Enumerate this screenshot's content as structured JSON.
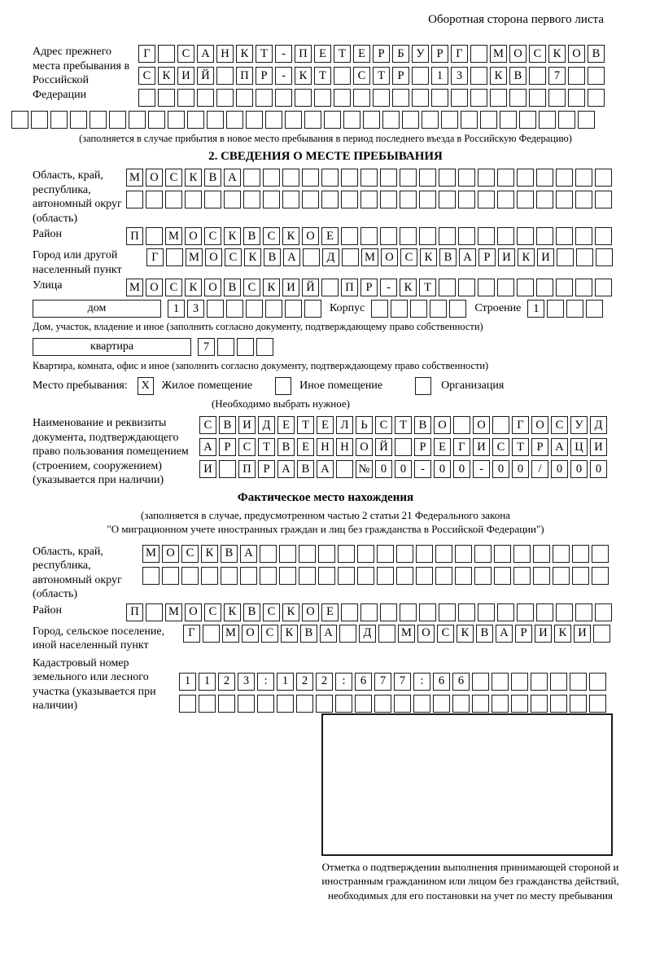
{
  "header": {
    "note": "Оборотная сторона первого листа"
  },
  "prev_address": {
    "label": "Адрес прежнего места пребывания в Российской Федерации",
    "row1": [
      "Г",
      "",
      "С",
      "А",
      "Н",
      "К",
      "Т",
      "-",
      "П",
      "Е",
      "Т",
      "Е",
      "Р",
      "Б",
      "У",
      "Р",
      "Г",
      "",
      "М",
      "О",
      "С",
      "К",
      "О",
      "В"
    ],
    "row2": [
      "С",
      "К",
      "И",
      "Й",
      "",
      "П",
      "Р",
      "-",
      "К",
      "Т",
      "",
      "С",
      "Т",
      "Р",
      "",
      "1",
      "3",
      "",
      "К",
      "В",
      "",
      "7",
      "",
      ""
    ],
    "row3": [
      "",
      "",
      "",
      "",
      "",
      "",
      "",
      "",
      "",
      "",
      "",
      "",
      "",
      "",
      "",
      "",
      "",
      "",
      "",
      "",
      "",
      "",
      "",
      ""
    ],
    "overflow_row": [
      "",
      "",
      "",
      "",
      "",
      "",
      "",
      "",
      "",
      "",
      "",
      "",
      "",
      "",
      "",
      "",
      "",
      "",
      "",
      "",
      "",
      "",
      "",
      "",
      "",
      "",
      "",
      "",
      "",
      ""
    ],
    "note": "(заполняется в случае прибытия в новое место пребывания в период последнего въезда в Российскую Федерацию)"
  },
  "section2": {
    "title": "2. СВЕДЕНИЯ О МЕСТЕ ПРЕБЫВАНИЯ",
    "region": {
      "label": "Область, край, республика, автономный округ (область)",
      "row1": [
        "М",
        "О",
        "С",
        "К",
        "В",
        "А",
        "",
        "",
        "",
        "",
        "",
        "",
        "",
        "",
        "",
        "",
        "",
        "",
        "",
        "",
        "",
        "",
        "",
        "",
        ""
      ],
      "row2": [
        "",
        "",
        "",
        "",
        "",
        "",
        "",
        "",
        "",
        "",
        "",
        "",
        "",
        "",
        "",
        "",
        "",
        "",
        "",
        "",
        "",
        "",
        "",
        "",
        ""
      ]
    },
    "district": {
      "label": "Район",
      "row": [
        "П",
        "",
        "М",
        "О",
        "С",
        "К",
        "В",
        "С",
        "К",
        "О",
        "Е",
        "",
        "",
        "",
        "",
        "",
        "",
        "",
        "",
        "",
        "",
        "",
        "",
        "",
        ""
      ]
    },
    "city": {
      "label": "Город или другой населенный пункт",
      "row": [
        "Г",
        "",
        "М",
        "О",
        "С",
        "К",
        "В",
        "А",
        "",
        "Д",
        "",
        "М",
        "О",
        "С",
        "К",
        "В",
        "А",
        "Р",
        "И",
        "К",
        "И",
        "",
        "",
        ""
      ]
    },
    "street": {
      "label": "Улица",
      "row": [
        "М",
        "О",
        "С",
        "К",
        "О",
        "В",
        "С",
        "К",
        "И",
        "Й",
        "",
        "П",
        "Р",
        "-",
        "К",
        "Т",
        "",
        "",
        "",
        "",
        "",
        "",
        "",
        "",
        ""
      ]
    },
    "house": {
      "box_label": "дом",
      "number_cells": [
        "1",
        "3",
        "",
        "",
        "",
        "",
        "",
        ""
      ],
      "korpus_label": "Корпус",
      "korpus_cells": [
        "",
        "",
        "",
        "",
        ""
      ],
      "stroenie_label": "Строение",
      "stroenie_cells": [
        "1",
        "",
        "",
        ""
      ],
      "note": "Дом, участок, владение и иное (заполнить согласно документу, подтверждающему право собственности)"
    },
    "apartment": {
      "box_label": "квартира",
      "cells": [
        "7",
        "",
        "",
        ""
      ],
      "note": "Квартира, комната, офис и иное (заполнить согласно документу, подтверждающему право собственности)"
    },
    "stay_type": {
      "label": "Место пребывания:",
      "options": [
        {
          "label": "Жилое помещение",
          "mark": "X"
        },
        {
          "label": "Иное помещение",
          "mark": ""
        },
        {
          "label": "Организация",
          "mark": ""
        }
      ],
      "note": "(Необходимо выбрать нужное)"
    },
    "document": {
      "label": "Наименование и реквизиты документа, подтверждающего право пользования помещением (строением, сооружением) (указывается при наличии)",
      "row1": [
        "С",
        "В",
        "И",
        "Д",
        "Е",
        "Т",
        "Е",
        "Л",
        "Ь",
        "С",
        "Т",
        "В",
        "О",
        "",
        "О",
        "",
        "Г",
        "О",
        "С",
        "У",
        "Д"
      ],
      "row2": [
        "А",
        "Р",
        "С",
        "Т",
        "В",
        "Е",
        "Н",
        "Н",
        "О",
        "Й",
        "",
        "Р",
        "Е",
        "Г",
        "И",
        "С",
        "Т",
        "Р",
        "А",
        "Ц",
        "И"
      ],
      "row3": [
        "И",
        "",
        "П",
        "Р",
        "А",
        "В",
        "А",
        "",
        "№",
        "0",
        "0",
        "-",
        "0",
        "0",
        "-",
        "0",
        "0",
        "/",
        "0",
        "0",
        "0"
      ]
    }
  },
  "actual_location": {
    "title": "Фактическое место нахождения",
    "note_line1": "(заполняется в случае, предусмотренном частью 2 статьи 21 Федерального закона",
    "note_line2": "\"О миграционном учете иностранных граждан и лиц без гражданства в Российской Федерации\")",
    "region": {
      "label": "Область, край, республика, автономный округ (область)",
      "row1": [
        "М",
        "О",
        "С",
        "К",
        "В",
        "А",
        "",
        "",
        "",
        "",
        "",
        "",
        "",
        "",
        "",
        "",
        "",
        "",
        "",
        "",
        "",
        "",
        "",
        ""
      ],
      "row2": [
        "",
        "",
        "",
        "",
        "",
        "",
        "",
        "",
        "",
        "",
        "",
        "",
        "",
        "",
        "",
        "",
        "",
        "",
        "",
        "",
        "",
        "",
        "",
        ""
      ]
    },
    "district": {
      "label": "Район",
      "row": [
        "П",
        "",
        "М",
        "О",
        "С",
        "К",
        "В",
        "С",
        "К",
        "О",
        "Е",
        "",
        "",
        "",
        "",
        "",
        "",
        "",
        "",
        "",
        "",
        "",
        "",
        "",
        ""
      ]
    },
    "city": {
      "label": "Город, сельское поселение, иной населенный пункт",
      "row": [
        "Г",
        "",
        "М",
        "О",
        "С",
        "К",
        "В",
        "А",
        "",
        "Д",
        "",
        "М",
        "О",
        "С",
        "К",
        "В",
        "А",
        "Р",
        "И",
        "К",
        "И",
        ""
      ]
    },
    "cadastral": {
      "label": "Кадастровый номер земельного или лесного участка (указывается при наличии)",
      "row1": [
        "1",
        "1",
        "2",
        "3",
        ":",
        "1",
        "2",
        "2",
        ":",
        "6",
        "7",
        "7",
        ":",
        "6",
        "6",
        "",
        "",
        "",
        "",
        "",
        "",
        ""
      ],
      "row2": [
        "",
        "",
        "",
        "",
        "",
        "",
        "",
        "",
        "",
        "",
        "",
        "",
        "",
        "",
        "",
        "",
        "",
        "",
        "",
        "",
        "",
        ""
      ]
    },
    "stamp_note": "Отметка о подтверждении выполнения принимающей стороной и иностранным гражданином или лицом без гражданства действий, необходимых для его постановки на учет по месту пребывания"
  }
}
